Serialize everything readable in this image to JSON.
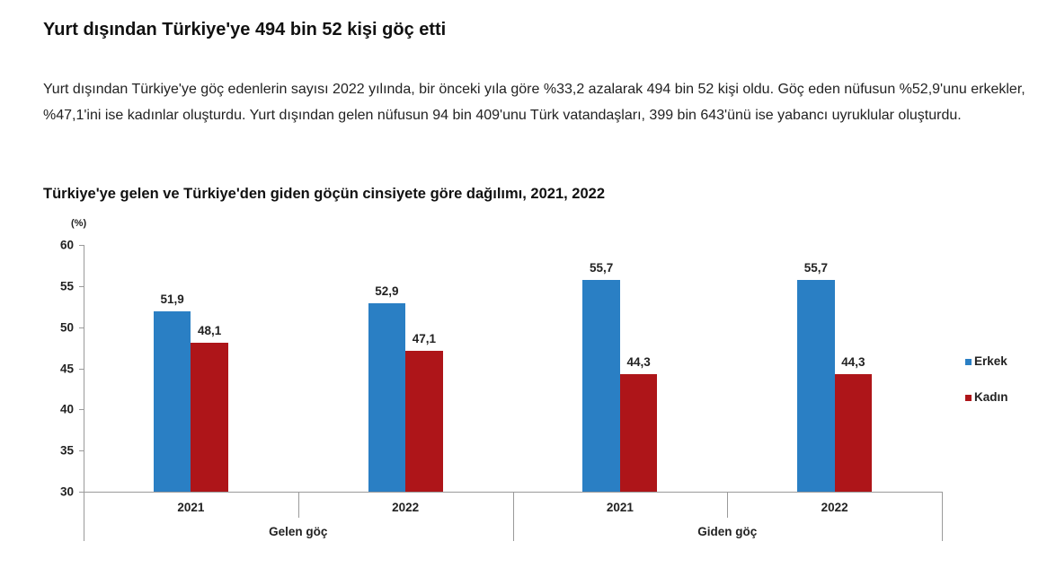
{
  "headline": "Yurt dışından Türkiye'ye 494 bin 52 kişi göç etti",
  "lead": "Yurt dışından Türkiye'ye göç edenlerin sayısı 2022 yılında, bir önceki yıla göre %33,2 azalarak 494 bin 52 kişi oldu. Göç eden nüfusun %52,9'unu erkekler, %47,1'ini ise kadınlar oluşturdu. Yurt dışından gelen nüfusun 94 bin 409'unu Türk vatandaşları, 399 bin 643'ünü ise yabancı uyruklular oluşturdu.",
  "colors": {
    "erkek": "#2a7fc4",
    "kadin": "#ae1519"
  },
  "chart_data": {
    "type": "bar",
    "title": "Türkiye'ye gelen ve Türkiye'den giden göçün cinsiyete göre dağılımı, 2021, 2022",
    "ylabel": "(%)",
    "xlabel": "",
    "ylim": [
      30,
      60
    ],
    "yticks": [
      "60",
      "55",
      "50",
      "45",
      "40",
      "35",
      "30"
    ],
    "groups": [
      "Gelen göç",
      "Giden göç"
    ],
    "categories": [
      "2021",
      "2022",
      "2021",
      "2022"
    ],
    "category_groups": [
      "Gelen göç",
      "Gelen göç",
      "Giden göç",
      "Giden göç"
    ],
    "series": [
      {
        "name": "Erkek",
        "values": [
          51.9,
          52.9,
          55.7,
          55.7
        ],
        "labels": [
          "51,9",
          "52,9",
          "55,7",
          "55,7"
        ]
      },
      {
        "name": "Kadın",
        "values": [
          48.1,
          47.1,
          44.3,
          44.3
        ],
        "labels": [
          "48,1",
          "47,1",
          "44,3",
          "44,3"
        ]
      }
    ],
    "legend": [
      "Erkek",
      "Kadın"
    ],
    "legend_position": "right",
    "grid": false
  }
}
